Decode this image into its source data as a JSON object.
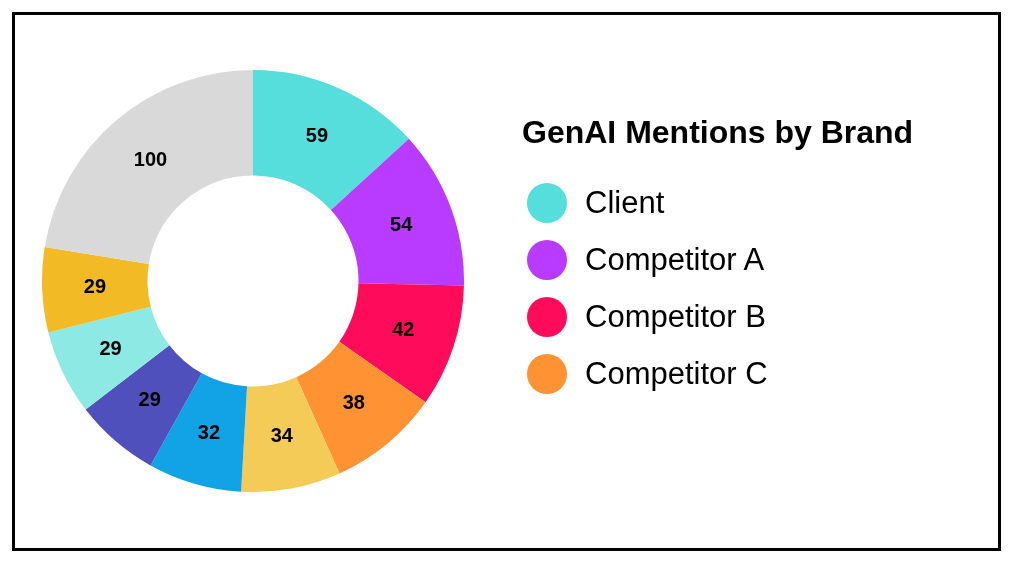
{
  "chart_data": {
    "type": "donut",
    "title": "GenAI Mentions by Brand",
    "categories": [
      "Client",
      "Competitor A",
      "Competitor B",
      "Competitor C",
      null,
      null,
      null,
      null,
      null,
      null
    ],
    "values": [
      59,
      54,
      42,
      38,
      34,
      32,
      29,
      29,
      29,
      100
    ],
    "colors": [
      "#55dedb",
      "#b93bff",
      "#ff0b5c",
      "#ff9334",
      "#f4cb56",
      "#12a3e6",
      "#4f50bb",
      "#8de9e4",
      "#f2bb26",
      "#d9d9d9"
    ],
    "data_labels": true,
    "legend": "right"
  }
}
